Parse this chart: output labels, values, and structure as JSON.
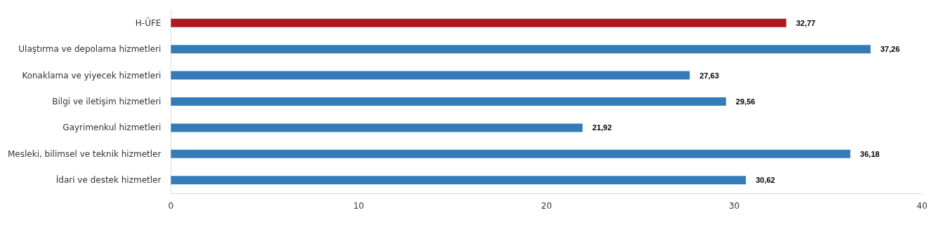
{
  "chart_data": {
    "type": "bar",
    "orientation": "horizontal",
    "categories": [
      "H-ÜFE",
      "Ulaştırma ve depolama hizmetleri",
      "Konaklama ve yiyecek hizmetleri",
      "Bilgi ve iletişim hizmetleri",
      "Gayrimenkul hizmetleri",
      "Mesleki, bilimsel ve teknik hizmetler",
      "İdari ve destek hizmetler"
    ],
    "values": [
      32.77,
      37.26,
      27.63,
      29.56,
      21.92,
      36.18,
      30.62
    ],
    "value_labels": [
      "32,77",
      "37,26",
      "27,63",
      "29,56",
      "21,92",
      "36,18",
      "30,62"
    ],
    "colors": [
      "#b0191f",
      "#337cb8",
      "#337cb8",
      "#337cb8",
      "#337cb8",
      "#337cb8",
      "#337cb8"
    ],
    "xlim": [
      0,
      40
    ],
    "xticks": [
      0,
      10,
      20,
      30,
      40
    ],
    "grid": false
  }
}
